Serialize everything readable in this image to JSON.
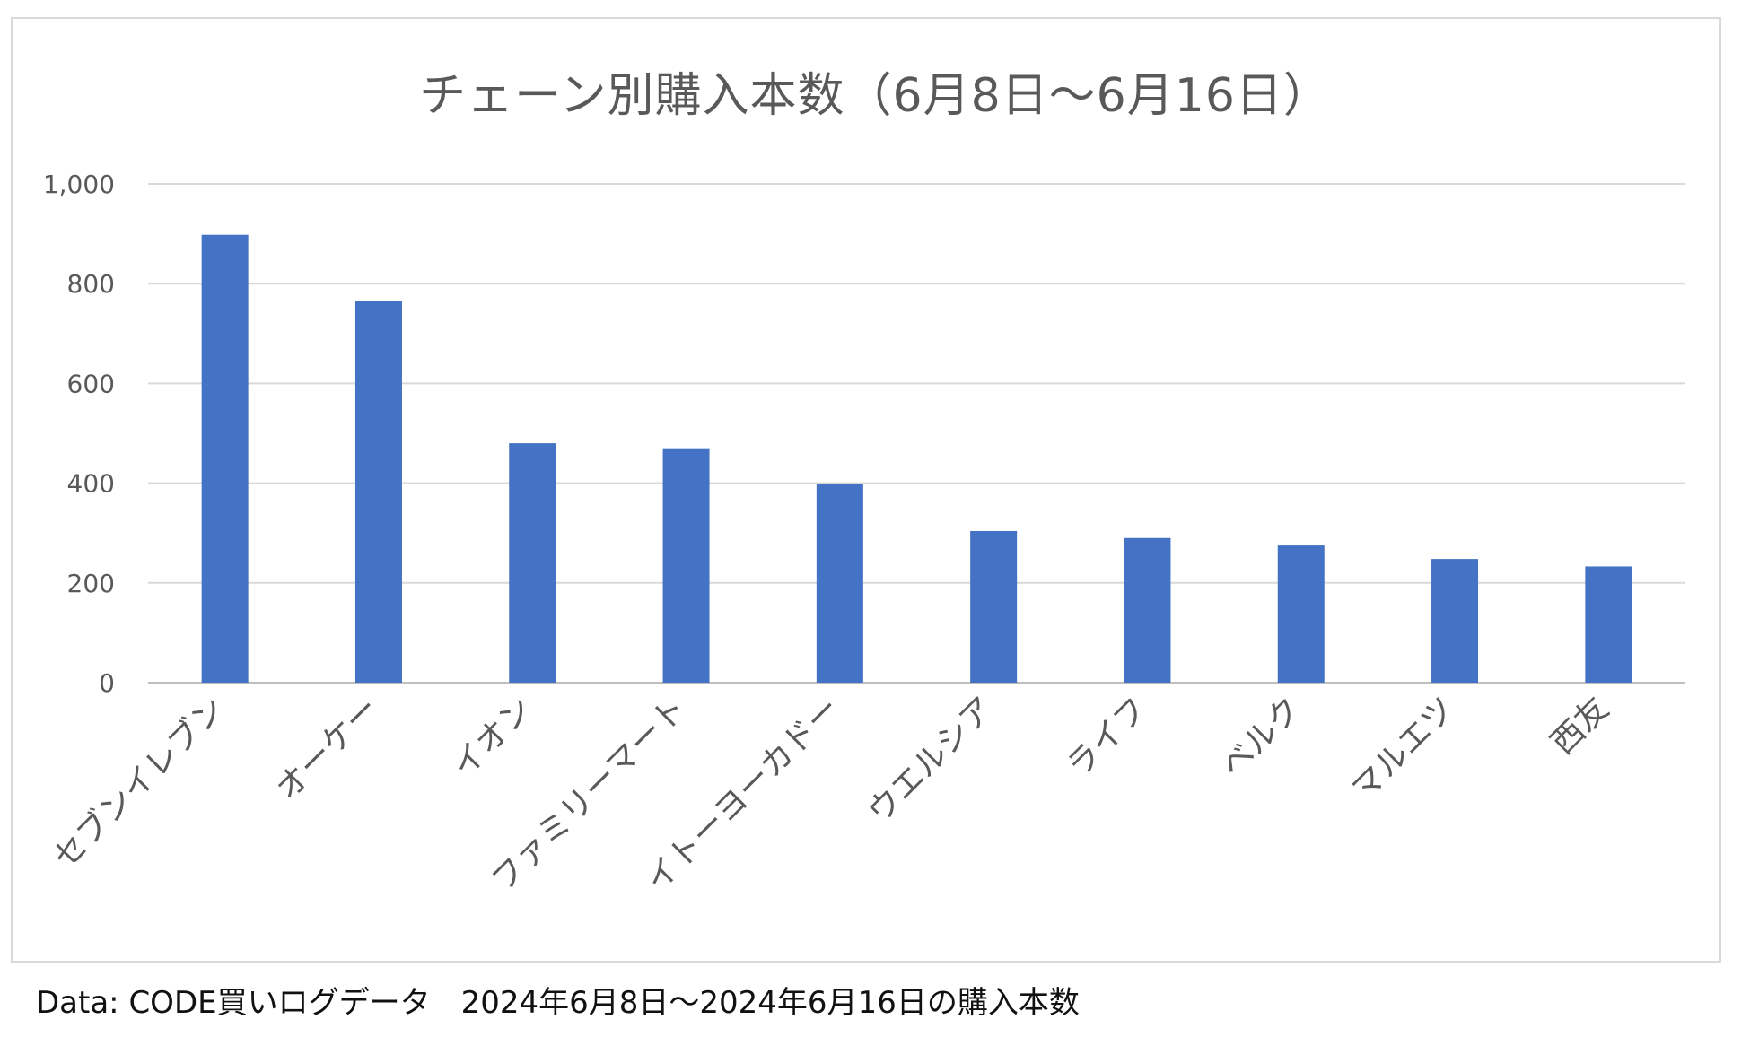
{
  "chart_data": {
    "type": "bar",
    "title": "チェーン別購入本数（6月8日～6月16日）",
    "xlabel": "",
    "ylabel": "",
    "categories": [
      "セブンイレブン",
      "オーケー",
      "イオン",
      "ファミリーマート",
      "イトーヨーカドー",
      "ウエルシア",
      "ライフ",
      "ベルク",
      "マルエツ",
      "西友"
    ],
    "values": [
      898,
      765,
      480,
      470,
      398,
      304,
      290,
      275,
      248,
      233
    ],
    "ylim": [
      0,
      1000
    ],
    "yticks": [
      0,
      200,
      400,
      600,
      800,
      1000
    ],
    "ytick_labels": [
      "0",
      "200",
      "400",
      "600",
      "800",
      "1,000"
    ],
    "grid": true,
    "legend": "none",
    "bar_color": "#4472c4"
  },
  "footer": {
    "text": "Data: CODE買いログデータ　2024年6月8日～2024年6月16日の購入本数"
  }
}
